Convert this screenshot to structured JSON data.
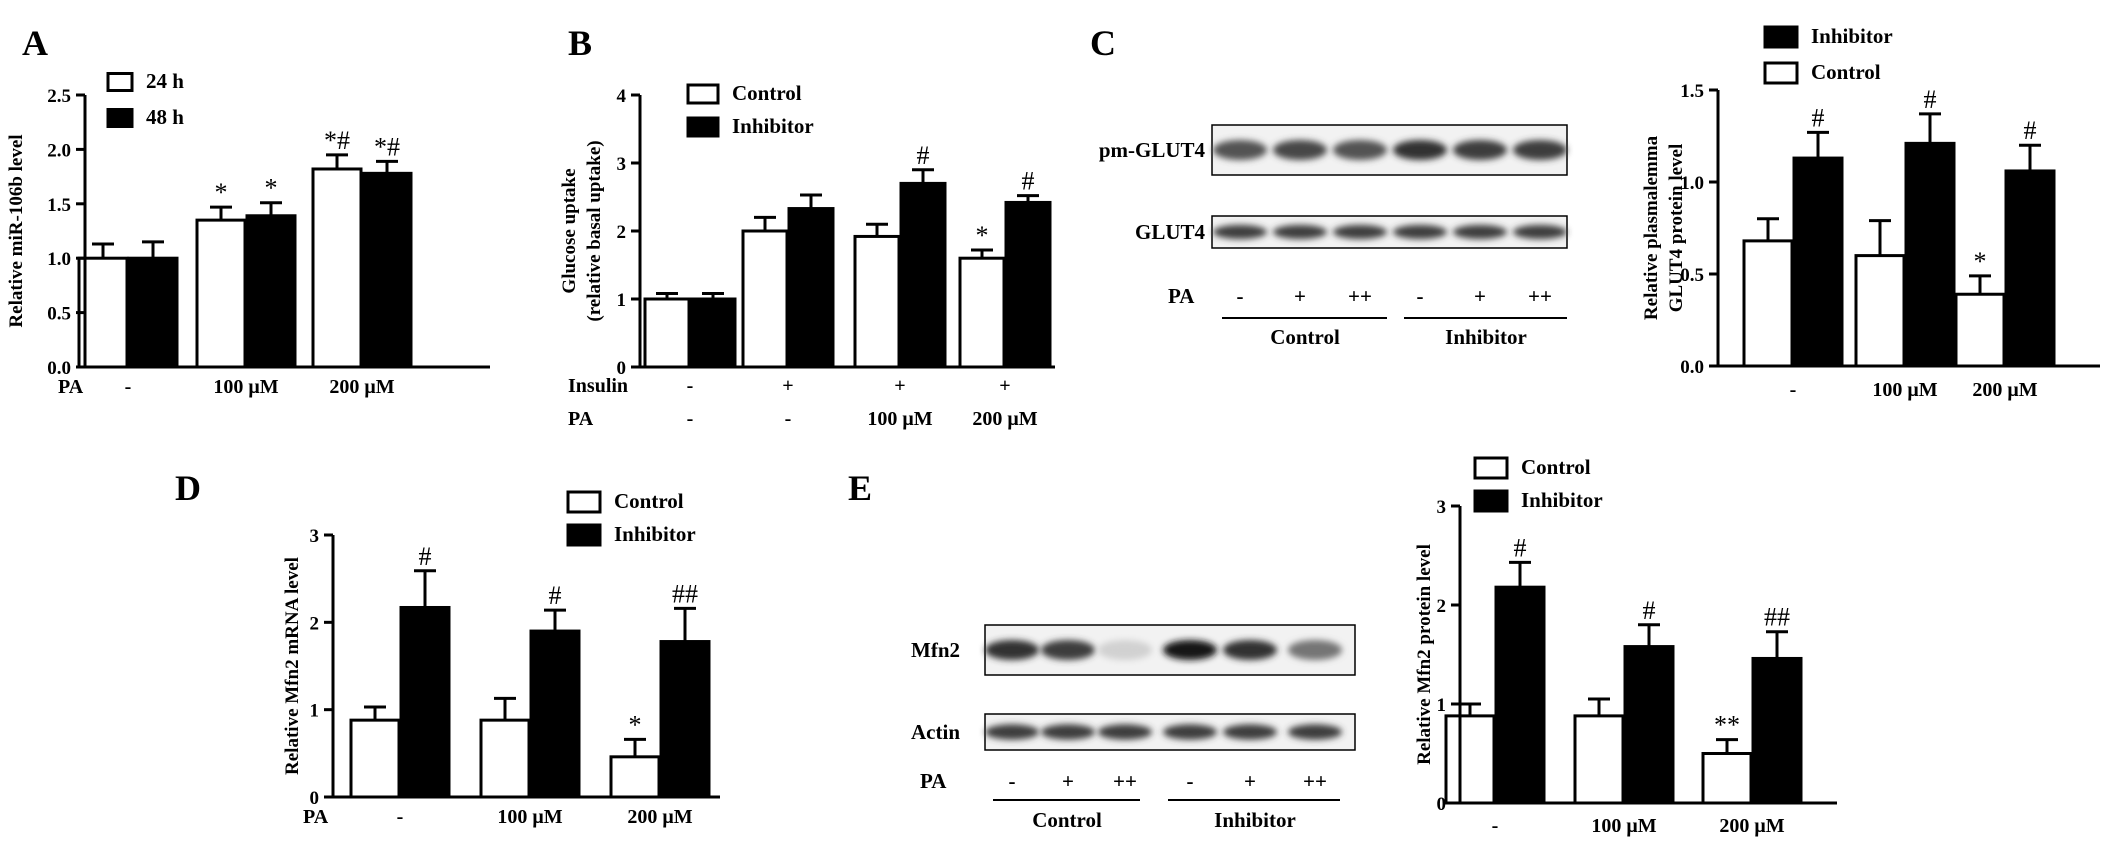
{
  "panels": [
    {
      "id": "A",
      "letter": "A"
    },
    {
      "id": "B",
      "letter": "B"
    },
    {
      "id": "C",
      "letter": "C"
    },
    {
      "id": "D",
      "letter": "D"
    },
    {
      "id": "E",
      "letter": "E"
    }
  ],
  "chart_data": [
    {
      "id": "A",
      "type": "bar",
      "ylabel": "Relative miR-106b level",
      "ylim": [
        0,
        2.5
      ],
      "yticks": [
        "0.0",
        "0.5",
        "1.0",
        "1.5",
        "2.0",
        "2.5"
      ],
      "rows": [
        {
          "label": "PA",
          "values": [
            "-",
            "100 μM",
            "200 μM"
          ]
        }
      ],
      "legend_placement": "top-left",
      "series": [
        {
          "name": "24 h",
          "fill": "white",
          "values": [
            1.0,
            1.35,
            1.82
          ],
          "errors": [
            0.13,
            0.12,
            0.13
          ],
          "marks": [
            "",
            "*",
            "*#"
          ]
        },
        {
          "name": "48 h",
          "fill": "black",
          "values": [
            1.0,
            1.39,
            1.78
          ],
          "errors": [
            0.15,
            0.12,
            0.11
          ],
          "marks": [
            "",
            "*",
            "*#"
          ]
        }
      ]
    },
    {
      "id": "B",
      "type": "bar",
      "ylabel": "Glucose uptake",
      "ylabel2": "(relative basal uptake)",
      "ylim": [
        0,
        4
      ],
      "yticks": [
        "0",
        "1",
        "2",
        "3",
        "4"
      ],
      "rows": [
        {
          "label": "Insulin",
          "values": [
            "-",
            "+",
            "+",
            "+"
          ]
        },
        {
          "label": "PA",
          "values": [
            "-",
            "-",
            "100 μM",
            "200 μM"
          ]
        }
      ],
      "legend_placement": "top-left",
      "series": [
        {
          "name": "Control",
          "fill": "white",
          "values": [
            1.0,
            2.0,
            1.92,
            1.6
          ],
          "errors": [
            0.08,
            0.2,
            0.18,
            0.12
          ],
          "marks": [
            "",
            "",
            "",
            "*"
          ]
        },
        {
          "name": "Inhibitor",
          "fill": "black",
          "values": [
            1.0,
            2.33,
            2.7,
            2.42
          ],
          "errors": [
            0.08,
            0.2,
            0.2,
            0.1
          ],
          "marks": [
            "",
            "",
            "#",
            "#"
          ]
        }
      ]
    },
    {
      "id": "C",
      "type": "bar",
      "ylabel": "Relative plasmalemma",
      "ylabel2": "GLUT4 protein level",
      "ylim": [
        0,
        1.5
      ],
      "yticks": [
        "0.0",
        "0.5",
        "1.0",
        "1.5"
      ],
      "rows": [
        {
          "label": "",
          "values": [
            "-",
            "100 μM",
            "200 μM"
          ]
        }
      ],
      "legend_placement": "top-left",
      "series": [
        {
          "name": "Control",
          "fill": "white",
          "values": [
            0.68,
            0.6,
            0.39
          ],
          "errors": [
            0.12,
            0.19,
            0.1
          ],
          "marks": [
            "",
            "",
            "*"
          ]
        },
        {
          "name": "Inhibitor",
          "fill": "black",
          "values": [
            1.13,
            1.21,
            1.06
          ],
          "errors": [
            0.14,
            0.16,
            0.14
          ],
          "marks": [
            "#",
            "#",
            "#"
          ]
        }
      ],
      "legend_order": [
        "Inhibitor",
        "Control"
      ]
    },
    {
      "id": "D",
      "type": "bar",
      "ylabel": "Relative Mfn2 mRNA level",
      "ylim": [
        0,
        3
      ],
      "yticks": [
        "0",
        "1",
        "2",
        "3"
      ],
      "rows": [
        {
          "label": "PA",
          "values": [
            "-",
            "100 μM",
            "200 μM"
          ]
        }
      ],
      "legend_placement": "top-right",
      "series": [
        {
          "name": "Control",
          "fill": "white",
          "values": [
            0.88,
            0.88,
            0.46
          ],
          "errors": [
            0.15,
            0.25,
            0.2
          ],
          "marks": [
            "",
            "",
            "*"
          ]
        },
        {
          "name": "Inhibitor",
          "fill": "black",
          "values": [
            2.17,
            1.9,
            1.78
          ],
          "errors": [
            0.42,
            0.24,
            0.38
          ],
          "marks": [
            "#",
            "#",
            "##"
          ]
        }
      ]
    },
    {
      "id": "E",
      "type": "bar",
      "ylabel": "Relative Mfn2 protein level",
      "ylim": [
        0,
        3
      ],
      "yticks": [
        "0",
        "1",
        "2",
        "3"
      ],
      "rows": [
        {
          "label": "",
          "values": [
            "-",
            "100 μM",
            "200 μM"
          ]
        }
      ],
      "legend_placement": "top-left",
      "series": [
        {
          "name": "Control",
          "fill": "white",
          "values": [
            0.88,
            0.88,
            0.5
          ],
          "errors": [
            0.12,
            0.17,
            0.14
          ],
          "marks": [
            "",
            "",
            "**"
          ]
        },
        {
          "name": "Inhibitor",
          "fill": "black",
          "values": [
            2.18,
            1.58,
            1.46
          ],
          "errors": [
            0.25,
            0.22,
            0.27
          ],
          "marks": [
            "#",
            "#",
            "##"
          ]
        }
      ]
    }
  ],
  "blots": [
    {
      "id": "C-blot",
      "bands": [
        {
          "label": "pm-GLUT4",
          "intensity": [
            0.75,
            0.8,
            0.75,
            0.9,
            0.85,
            0.85
          ]
        },
        {
          "label": "GLUT4",
          "intensity": [
            0.85,
            0.85,
            0.85,
            0.85,
            0.85,
            0.85
          ]
        }
      ],
      "pa_label": "PA",
      "pa_values": [
        "-",
        "+",
        "++",
        "-",
        "+",
        "++"
      ],
      "groups": [
        "Control",
        "Inhibitor"
      ]
    },
    {
      "id": "E-blot",
      "bands": [
        {
          "label": "Mfn2",
          "intensity": [
            0.9,
            0.85,
            0.2,
            1.0,
            0.9,
            0.6
          ]
        },
        {
          "label": "Actin",
          "intensity": [
            0.85,
            0.85,
            0.85,
            0.85,
            0.85,
            0.85
          ]
        }
      ],
      "pa_label": "PA",
      "pa_values": [
        "-",
        "+",
        "++",
        "-",
        "+",
        "++"
      ],
      "groups": [
        "Control",
        "Inhibitor"
      ]
    }
  ]
}
